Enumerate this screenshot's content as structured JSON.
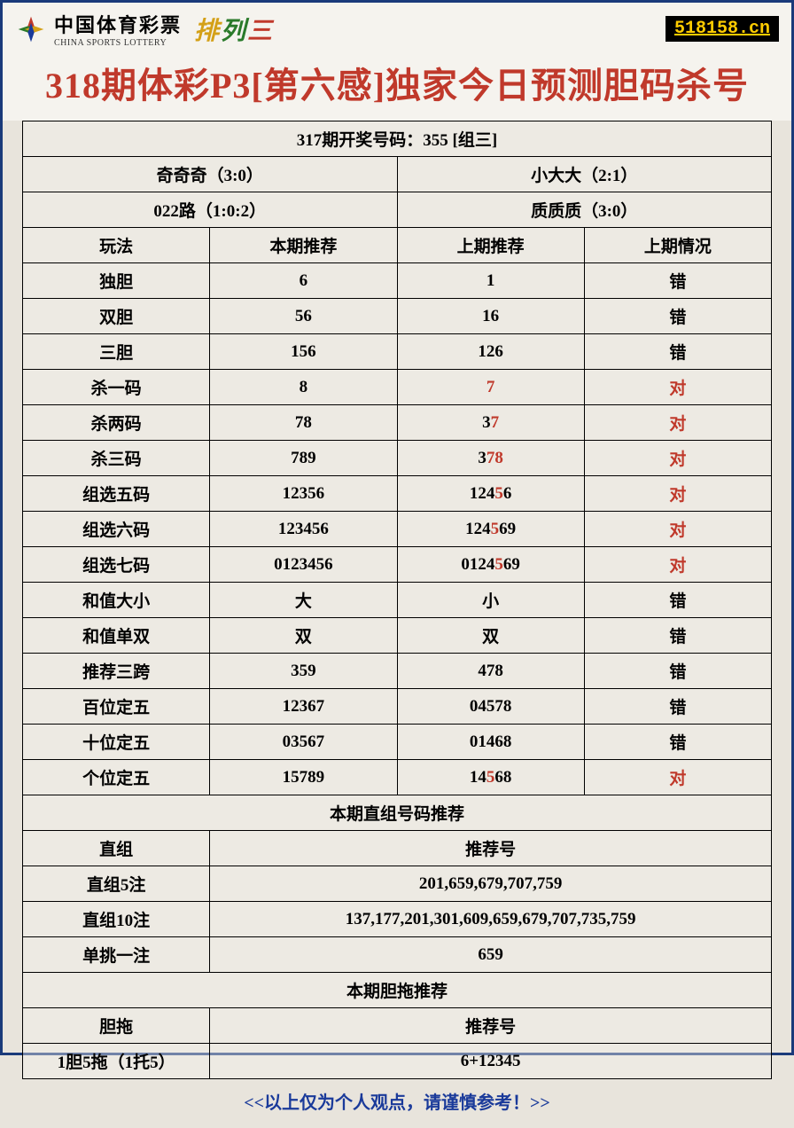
{
  "header": {
    "logo_cn": "中国体育彩票",
    "logo_en": "CHINA SPORTS LOTTERY",
    "pailie": [
      "排",
      "列",
      "三"
    ],
    "site": "518158.cn"
  },
  "title": "318期体彩P3[第六感]独家今日预测胆码杀号",
  "winning_row": "317期开奖号码：355 [组三]",
  "meta_rows": [
    [
      "奇奇奇（3:0）",
      "小大大（2:1）"
    ],
    [
      "022路（1:0:2）",
      "质质质（3:0）"
    ]
  ],
  "columns": [
    "玩法",
    "本期推荐",
    "上期推荐",
    "上期情况"
  ],
  "rows": [
    {
      "play": "独胆",
      "cur": "6",
      "prev": "1",
      "prev_red": [],
      "status": "错",
      "status_red": false
    },
    {
      "play": "双胆",
      "cur": "56",
      "prev": "16",
      "prev_red": [],
      "status": "错",
      "status_red": false
    },
    {
      "play": "三胆",
      "cur": "156",
      "prev": "126",
      "prev_red": [],
      "status": "错",
      "status_red": false
    },
    {
      "play": "杀一码",
      "cur": "8",
      "prev": "7",
      "prev_red": [
        0
      ],
      "status": "对",
      "status_red": true
    },
    {
      "play": "杀两码",
      "cur": "78",
      "prev": "37",
      "prev_red": [
        1
      ],
      "status": "对",
      "status_red": true
    },
    {
      "play": "杀三码",
      "cur": "789",
      "prev": "378",
      "prev_red": [
        1,
        2
      ],
      "status": "对",
      "status_red": true
    },
    {
      "play": "组选五码",
      "cur": "12356",
      "prev": "12456",
      "prev_red": [
        3
      ],
      "status": "对",
      "status_red": true
    },
    {
      "play": "组选六码",
      "cur": "123456",
      "prev": "124569",
      "prev_red": [
        3
      ],
      "status": "对",
      "status_red": true
    },
    {
      "play": "组选七码",
      "cur": "0123456",
      "prev": "0124569",
      "prev_red": [
        4
      ],
      "status": "对",
      "status_red": true
    },
    {
      "play": "和值大小",
      "cur": "大",
      "prev": "小",
      "prev_red": [],
      "status": "错",
      "status_red": false
    },
    {
      "play": "和值单双",
      "cur": "双",
      "prev": "双",
      "prev_red": [],
      "status": "错",
      "status_red": false
    },
    {
      "play": "推荐三跨",
      "cur": "359",
      "prev": "478",
      "prev_red": [],
      "status": "错",
      "status_red": false
    },
    {
      "play": "百位定五",
      "cur": "12367",
      "prev": "04578",
      "prev_red": [],
      "status": "错",
      "status_red": false
    },
    {
      "play": "十位定五",
      "cur": "03567",
      "prev": "01468",
      "prev_red": [],
      "status": "错",
      "status_red": false
    },
    {
      "play": "个位定五",
      "cur": "15789",
      "prev": "14568",
      "prev_red": [
        2
      ],
      "status": "对",
      "status_red": true
    }
  ],
  "zhizu_header": "本期直组号码推荐",
  "zhizu_cols": [
    "直组",
    "推荐号"
  ],
  "zhizu_rows": [
    {
      "label": "直组5注",
      "val": "201,659,679,707,759"
    },
    {
      "label": "直组10注",
      "val": "137,177,201,301,609,659,679,707,735,759"
    },
    {
      "label": "单挑一注",
      "val": "659"
    }
  ],
  "dantuo_header": "本期胆拖推荐",
  "dantuo_cols": [
    "胆拖",
    "推荐号"
  ],
  "dantuo_rows": [
    {
      "label": "1胆5拖（1托5）",
      "val": "6+12345"
    }
  ],
  "footer_note": "<<以上仅为个人观点，请谨慎参考！>>",
  "colors": {
    "border": "#1a3a7a",
    "red": "#c0392b",
    "bg": "#e8e4dc",
    "footer_blue": "#1a3a9a",
    "badge_bg": "#000",
    "badge_fg": "#ffcc00"
  }
}
